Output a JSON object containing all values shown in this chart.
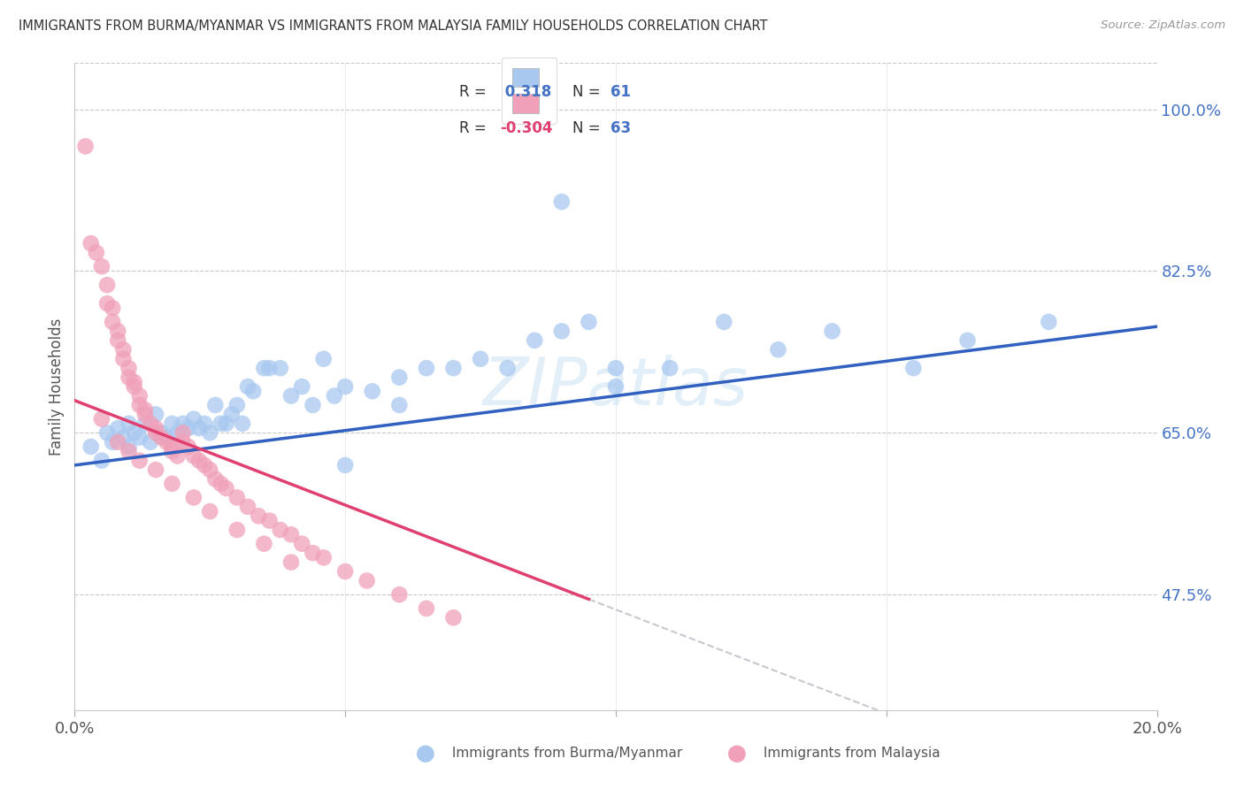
{
  "title": "IMMIGRANTS FROM BURMA/MYANMAR VS IMMIGRANTS FROM MALAYSIA FAMILY HOUSEHOLDS CORRELATION CHART",
  "source": "Source: ZipAtlas.com",
  "ylabel": "Family Households",
  "ytick_labels": [
    "100.0%",
    "82.5%",
    "65.0%",
    "47.5%"
  ],
  "ytick_values": [
    1.0,
    0.825,
    0.65,
    0.475
  ],
  "xlim": [
    0.0,
    0.2
  ],
  "ylim": [
    0.35,
    1.05
  ],
  "color_blue": "#A8C8F0",
  "color_pink": "#F0A0B8",
  "line_blue": "#3060C0",
  "line_pink": "#E04070",
  "line_dashed": "#C8C8D0",
  "watermark": "ZIPatlas",
  "blue_scatter_x": [
    0.003,
    0.005,
    0.006,
    0.007,
    0.008,
    0.009,
    0.01,
    0.01,
    0.011,
    0.012,
    0.013,
    0.014,
    0.015,
    0.016,
    0.017,
    0.018,
    0.019,
    0.02,
    0.021,
    0.022,
    0.023,
    0.024,
    0.025,
    0.026,
    0.027,
    0.028,
    0.029,
    0.03,
    0.031,
    0.032,
    0.033,
    0.035,
    0.036,
    0.038,
    0.04,
    0.042,
    0.044,
    0.046,
    0.048,
    0.05,
    0.055,
    0.06,
    0.065,
    0.07,
    0.075,
    0.08,
    0.085,
    0.09,
    0.095,
    0.1,
    0.11,
    0.12,
    0.13,
    0.14,
    0.155,
    0.165,
    0.18,
    0.05,
    0.06,
    0.09,
    0.1
  ],
  "blue_scatter_y": [
    0.635,
    0.62,
    0.65,
    0.64,
    0.655,
    0.645,
    0.66,
    0.635,
    0.65,
    0.645,
    0.66,
    0.64,
    0.67,
    0.65,
    0.645,
    0.66,
    0.65,
    0.66,
    0.655,
    0.665,
    0.655,
    0.66,
    0.65,
    0.68,
    0.66,
    0.66,
    0.67,
    0.68,
    0.66,
    0.7,
    0.695,
    0.72,
    0.72,
    0.72,
    0.69,
    0.7,
    0.68,
    0.73,
    0.69,
    0.7,
    0.695,
    0.71,
    0.72,
    0.72,
    0.73,
    0.72,
    0.75,
    0.76,
    0.77,
    0.7,
    0.72,
    0.77,
    0.74,
    0.76,
    0.72,
    0.75,
    0.77,
    0.615,
    0.68,
    0.9,
    0.72
  ],
  "pink_scatter_x": [
    0.002,
    0.003,
    0.004,
    0.005,
    0.006,
    0.006,
    0.007,
    0.007,
    0.008,
    0.008,
    0.009,
    0.009,
    0.01,
    0.01,
    0.011,
    0.011,
    0.012,
    0.012,
    0.013,
    0.013,
    0.014,
    0.015,
    0.015,
    0.016,
    0.017,
    0.018,
    0.018,
    0.019,
    0.02,
    0.02,
    0.021,
    0.022,
    0.023,
    0.024,
    0.025,
    0.026,
    0.027,
    0.028,
    0.03,
    0.032,
    0.034,
    0.036,
    0.038,
    0.04,
    0.042,
    0.044,
    0.046,
    0.05,
    0.054,
    0.06,
    0.065,
    0.07,
    0.005,
    0.008,
    0.01,
    0.012,
    0.015,
    0.018,
    0.022,
    0.025,
    0.03,
    0.035,
    0.04
  ],
  "pink_scatter_y": [
    0.96,
    0.855,
    0.845,
    0.83,
    0.81,
    0.79,
    0.785,
    0.77,
    0.76,
    0.75,
    0.74,
    0.73,
    0.72,
    0.71,
    0.705,
    0.7,
    0.69,
    0.68,
    0.675,
    0.67,
    0.66,
    0.655,
    0.65,
    0.645,
    0.64,
    0.635,
    0.63,
    0.625,
    0.65,
    0.64,
    0.635,
    0.625,
    0.62,
    0.615,
    0.61,
    0.6,
    0.595,
    0.59,
    0.58,
    0.57,
    0.56,
    0.555,
    0.545,
    0.54,
    0.53,
    0.52,
    0.515,
    0.5,
    0.49,
    0.475,
    0.46,
    0.45,
    0.665,
    0.64,
    0.63,
    0.62,
    0.61,
    0.595,
    0.58,
    0.565,
    0.545,
    0.53,
    0.51
  ],
  "blue_line_x": [
    0.0,
    0.2
  ],
  "blue_line_y": [
    0.615,
    0.765
  ],
  "pink_line_x": [
    0.0,
    0.095
  ],
  "pink_line_y": [
    0.685,
    0.47
  ],
  "dashed_line_x": [
    0.095,
    0.215
  ],
  "dashed_line_y": [
    0.47,
    0.2
  ],
  "legend1_r": "R =",
  "legend1_rval": "  0.318",
  "legend1_n": "N =",
  "legend1_nval": "61",
  "legend2_r": "R =",
  "legend2_rval": "-0.304",
  "legend2_n": "N =",
  "legend2_nval": "63"
}
